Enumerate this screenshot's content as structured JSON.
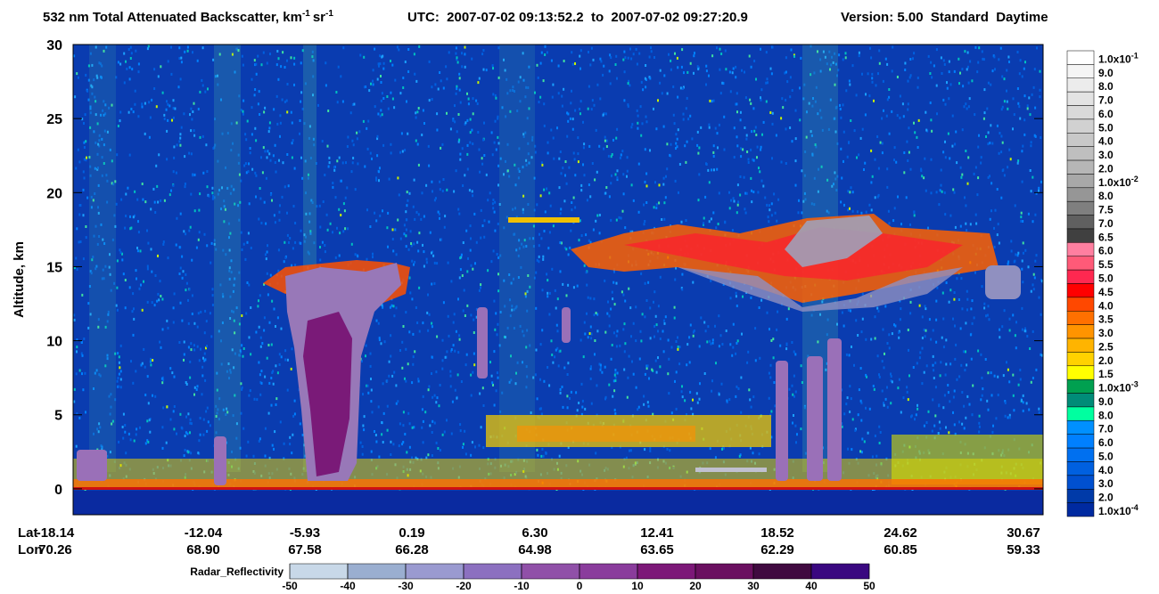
{
  "chart_data": {
    "type": "heatmap",
    "title": {
      "text": "532 nm Total Attenuated Backscatter, km",
      "sup1": "-1",
      "unit2": "sr",
      "sup2": "-1"
    },
    "utc": "UTC:  2007-07-02 09:13:52.2  to  2007-07-02 09:27:20.9",
    "version": "Version: 5.00  Standard  Daytime",
    "y_label": "Altitude, km",
    "ylim": [
      -1.75,
      30
    ],
    "yticks": [
      0,
      5,
      10,
      15,
      20,
      25,
      30
    ],
    "lat_title": "Lat",
    "lon_title": "Lon",
    "lat_labels": [
      "-18.14",
      "-12.04",
      "-5.93",
      "0.19",
      "6.30",
      "12.41",
      "18.52",
      "24.62",
      "30.67"
    ],
    "lon_labels": [
      "70.26",
      "68.90",
      "67.58",
      "66.28",
      "64.98",
      "63.65",
      "62.29",
      "60.85",
      "59.33"
    ],
    "backscatter_scale": {
      "labels": [
        {
          "text": "1.0x10",
          "exp": "-1"
        },
        "9.0",
        "8.0",
        "7.0",
        "6.0",
        "5.0",
        "4.0",
        "3.0",
        "2.0",
        {
          "text": "1.0x10",
          "exp": "-2"
        },
        "8.0",
        "7.5",
        "7.0",
        "6.5",
        "6.0",
        "5.5",
        "5.0",
        "4.5",
        "4.0",
        "3.5",
        "3.0",
        "2.5",
        "2.0",
        "1.5",
        {
          "text": "1.0x10",
          "exp": "-3"
        },
        "9.0",
        "8.0",
        "7.0",
        "6.0",
        "5.0",
        "4.0",
        "3.0",
        "2.0",
        {
          "text": "1.0x10",
          "exp": "-4"
        }
      ],
      "colors": [
        "#ffffff",
        "#f5f5f5",
        "#ececec",
        "#e3e3e3",
        "#dadada",
        "#d1d1d1",
        "#c8c8c8",
        "#bfbfbf",
        "#b6b6b6",
        "#a8a8a8",
        "#969696",
        "#7f7f7f",
        "#606060",
        "#404040",
        "#ff7fa0",
        "#ff5a78",
        "#ff2850",
        "#ff0000",
        "#ff4800",
        "#ff7000",
        "#ff9400",
        "#ffb400",
        "#ffd200",
        "#ffff00",
        "#00a050",
        "#008c78",
        "#00ffa0",
        "#0090ff",
        "#0080ff",
        "#0070f0",
        "#0060e0",
        "#0050d0",
        "#003aa8",
        "#002aa0"
      ]
    },
    "radar_scale": {
      "title": "Radar_Reflectivity",
      "ticks": [
        -50,
        -40,
        -30,
        -20,
        -10,
        0,
        10,
        20,
        30,
        40,
        50
      ],
      "colors": [
        "#c8d8e8",
        "#9aaed0",
        "#9a9ad0",
        "#8c70c0",
        "#9050a8",
        "#8a3c9c",
        "#7c1878",
        "#6a1060",
        "#400a40",
        "#3a0880"
      ]
    }
  }
}
